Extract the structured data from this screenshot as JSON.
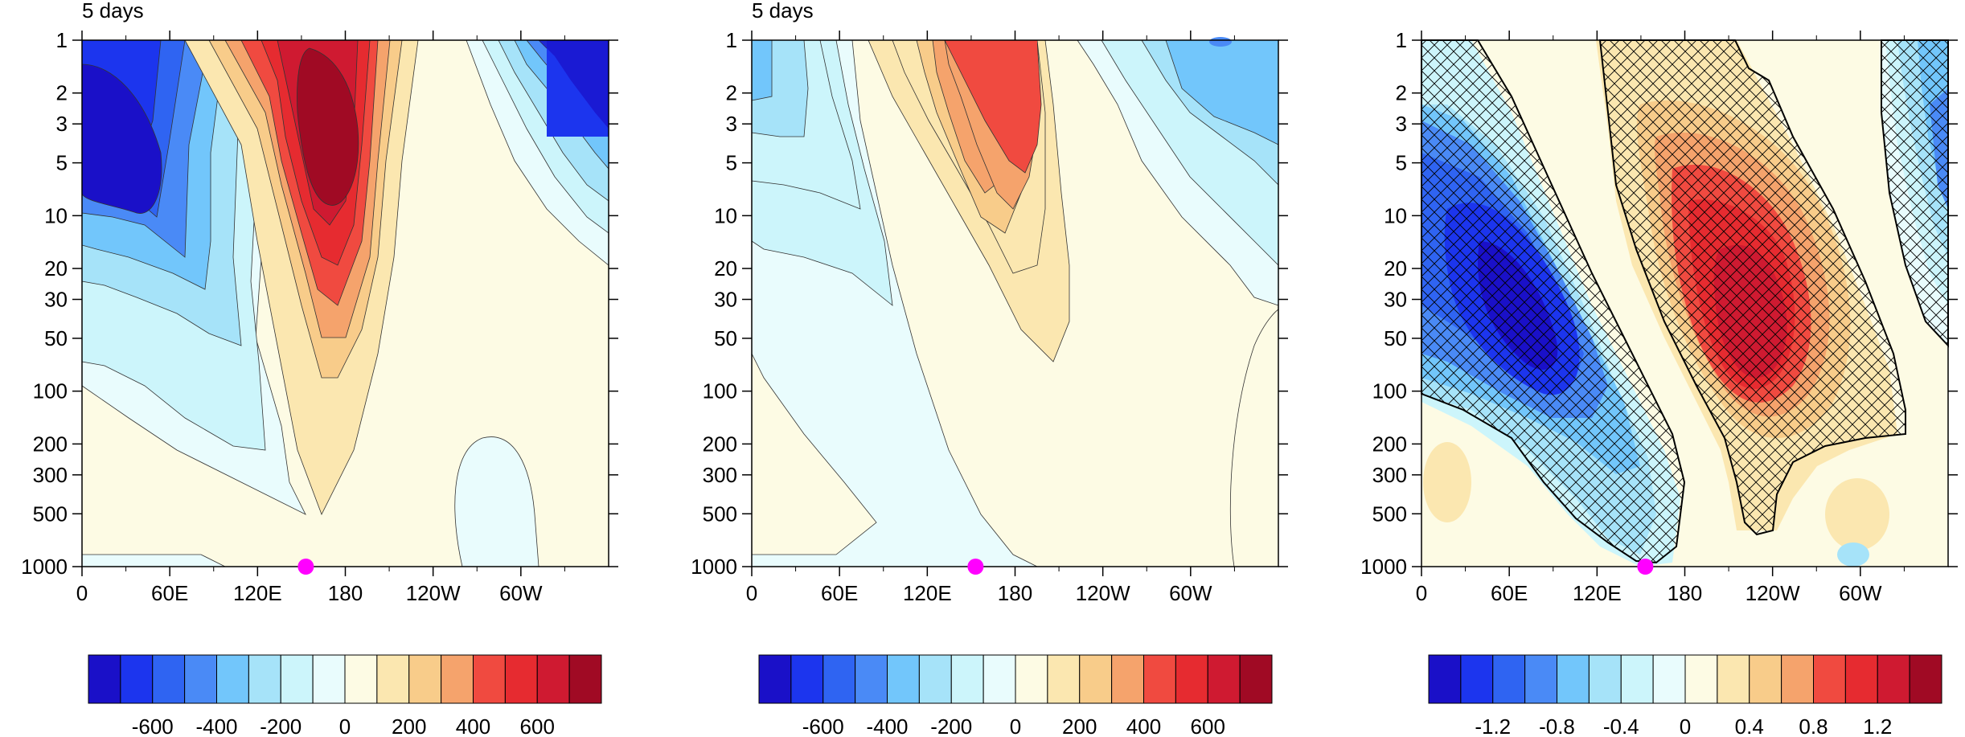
{
  "chart_data": [
    {
      "type": "contour",
      "title": "5 days",
      "x_ticks": [
        "0",
        "60E",
        "120E",
        "180",
        "120W",
        "60W"
      ],
      "y_ticks": [
        "1",
        "2",
        "3",
        "5",
        "10",
        "20",
        "30",
        "50",
        "100",
        "200",
        "300",
        "500",
        "1000"
      ],
      "y_scale": "log",
      "ylim": [
        1000,
        1
      ],
      "xlim": [
        0,
        360
      ],
      "colorbar": {
        "levels": [
          "-600",
          "-400",
          "-200",
          "0",
          "200",
          "400",
          "600"
        ]
      },
      "marker": {
        "x": 153,
        "y": 1000,
        "color": "#ff00ff"
      },
      "field": [
        {
          "name": "negative-west",
          "sign": "negative",
          "center_x": 40,
          "center_y": 5,
          "peak": -800
        },
        {
          "name": "positive-center",
          "sign": "positive",
          "center_x": 195,
          "center_y": 5,
          "peak": 750
        },
        {
          "name": "negative-east",
          "sign": "negative",
          "center_x": 345,
          "center_y": 2,
          "peak": -800
        }
      ]
    },
    {
      "type": "contour",
      "title": "5 days",
      "x_ticks": [
        "0",
        "60E",
        "120E",
        "180",
        "120W",
        "60W"
      ],
      "y_ticks": [
        "1",
        "2",
        "3",
        "5",
        "10",
        "20",
        "30",
        "50",
        "100",
        "200",
        "300",
        "500",
        "1000"
      ],
      "y_scale": "log",
      "ylim": [
        1000,
        1
      ],
      "xlim": [
        0,
        360
      ],
      "colorbar": {
        "levels": [
          "-600",
          "-400",
          "-200",
          "0",
          "200",
          "400",
          "600"
        ]
      },
      "marker": {
        "x": 153,
        "y": 1000,
        "color": "#ff00ff"
      },
      "field": [
        {
          "name": "negative-west",
          "sign": "negative",
          "center_x": 10,
          "center_y": 2,
          "peak": -300
        },
        {
          "name": "positive-center",
          "sign": "positive",
          "center_x": 180,
          "center_y": 2,
          "peak": 500
        },
        {
          "name": "negative-east",
          "sign": "negative",
          "center_x": 310,
          "center_y": 3,
          "peak": -300
        }
      ]
    },
    {
      "type": "contour",
      "title": "",
      "x_ticks": [
        "0",
        "60E",
        "120E",
        "180",
        "120W",
        "60W"
      ],
      "y_ticks": [
        "1",
        "2",
        "3",
        "5",
        "10",
        "20",
        "30",
        "50",
        "100",
        "200",
        "300",
        "500",
        "1000"
      ],
      "y_scale": "log",
      "ylim": [
        1000,
        1
      ],
      "xlim": [
        0,
        360
      ],
      "colorbar": {
        "levels": [
          "-1.2",
          "-0.8",
          "-0.4",
          "0",
          "0.4",
          "0.8",
          "1.2"
        ]
      },
      "marker": {
        "x": 153,
        "y": 1000,
        "color": "#ff00ff"
      },
      "hatching": "cross-hatched significant regions",
      "field": [
        {
          "name": "negative-west",
          "sign": "negative",
          "center_x": 70,
          "center_y": 30,
          "peak": -1.6
        },
        {
          "name": "positive-center",
          "sign": "positive",
          "center_x": 220,
          "center_y": 40,
          "peak": 1.4
        },
        {
          "name": "negative-east",
          "sign": "negative",
          "center_x": 360,
          "center_y": 5,
          "peak": -0.6
        }
      ]
    }
  ],
  "colors": {
    "palette": [
      "#1a10c8",
      "#1c35ee",
      "#2f64f2",
      "#4a8af6",
      "#72c6fb",
      "#a6e3f9",
      "#ccf5fb",
      "#e9fcfd",
      "#fdfbe4",
      "#fbe7b0",
      "#f8cc8a",
      "#f5a36c",
      "#f04a40",
      "#e62b30",
      "#cf1a31",
      "#a00a24"
    ],
    "marker": "#ff00ff"
  }
}
